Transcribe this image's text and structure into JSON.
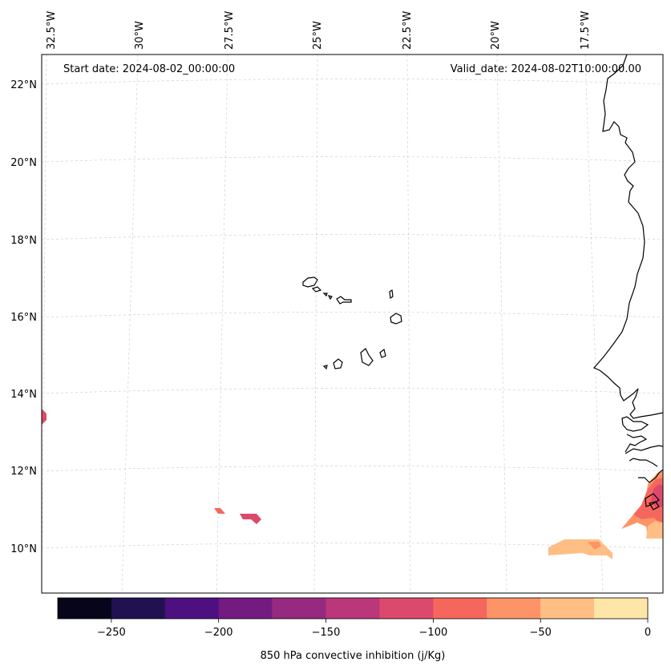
{
  "map": {
    "start_date_text": "Start date: 2024-08-02_00:00:00",
    "valid_date_text": "Valid_date: 2024-08-02T10:00:00.00",
    "lon_labels": [
      "32.5°W",
      "30°W",
      "27.5°W",
      "25°W",
      "22.5°W",
      "20°W",
      "17.5°W"
    ],
    "lat_labels": [
      "22°N",
      "20°N",
      "18°N",
      "16°N",
      "14°N",
      "12°N",
      "10°N"
    ]
  },
  "colorbar": {
    "label": "850 hPa convective inhibition (j/Kg)",
    "ticks": [
      "−250",
      "−200",
      "−150",
      "−100",
      "−50",
      "0"
    ],
    "colors": [
      "#06051a",
      "#221150",
      "#4e1081",
      "#731b81",
      "#952a80",
      "#b9377a",
      "#dc4a6b",
      "#f5675d",
      "#fd9468",
      "#ffbe84",
      "#fde6a8"
    ]
  }
}
